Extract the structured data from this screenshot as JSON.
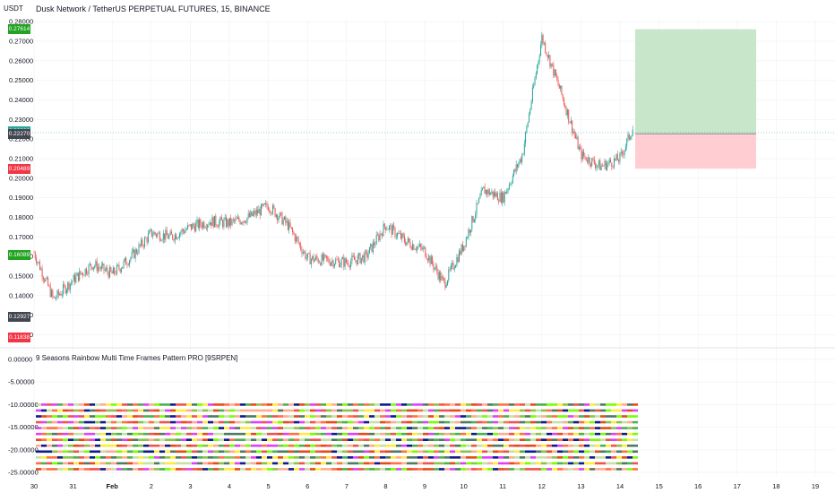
{
  "title": "Dusk Network / TetherUS PERPETUAL FUTURES, 15, BINANCE",
  "currency": "USDT",
  "indicator_title": "9 Seasons Rainbow Multi Time Frames Pattern PRO [9SRPEN]",
  "colors": {
    "up": "#26a69a",
    "down": "#ef5350",
    "grid": "#eef0f3",
    "tp": "#c8e6c9",
    "sl": "#ffcdd2"
  },
  "chart_data": [
    {
      "type": "line",
      "name": "price",
      "y_ticks": [
        "0.28000",
        "0.27000",
        "0.26000",
        "0.25000",
        "0.24000",
        "0.23000",
        "0.22000",
        "0.21000",
        "0.20000",
        "0.19000",
        "0.18000",
        "0.17000",
        "0.16000",
        "0.15000",
        "0.14000",
        "0.13000",
        "0.12000"
      ],
      "ylim": [
        0.117,
        0.281
      ],
      "x_labels": [
        "30",
        "31",
        "Feb",
        "2",
        "3",
        "4",
        "5",
        "6",
        "7",
        "8",
        "9",
        "10",
        "11",
        "12",
        "13",
        "14",
        "15",
        "16",
        "17",
        "18",
        "19"
      ],
      "series": [
        {
          "x": [
            "30 00:00",
            "30 12:00",
            "31 00:00",
            "31 12:00",
            "Feb 00:00",
            "Feb 12:00",
            "2 00:00",
            "2 12:00",
            "3 00:00",
            "3 12:00",
            "4 00:00",
            "4 12:00",
            "5 00:00",
            "5 12:00",
            "6 00:00",
            "6 12:00",
            "7 00:00",
            "7 12:00",
            "8 00:00",
            "8 12:00",
            "9 00:00",
            "9 12:00",
            "10 00:00",
            "10 12:00",
            "11 00:00",
            "11 12:00",
            "12 00:00",
            "12 12:00",
            "13 00:00",
            "13 12:00",
            "14 00:00",
            "14 08:00"
          ],
          "y": [
            0.162,
            0.138,
            0.148,
            0.156,
            0.151,
            0.16,
            0.172,
            0.17,
            0.175,
            0.178,
            0.177,
            0.18,
            0.186,
            0.176,
            0.159,
            0.158,
            0.157,
            0.16,
            0.176,
            0.168,
            0.163,
            0.146,
            0.166,
            0.194,
            0.19,
            0.212,
            0.272,
            0.243,
            0.212,
            0.206,
            0.21,
            0.226
          ]
        }
      ],
      "price_badges": [
        {
          "label": "0.27614",
          "value": 0.27614,
          "color": "#22a322"
        },
        {
          "label": "0.22380",
          "value": 0.2238,
          "color": "#26a69a"
        },
        {
          "label": "03:05",
          "value": 0.2225,
          "color": "#26a69a"
        },
        {
          "label": "0.22270",
          "value": 0.2227,
          "color": "#434651"
        },
        {
          "label": "0.20489",
          "value": 0.20489,
          "color": "#f23645"
        },
        {
          "label": "0.16089",
          "value": 0.16089,
          "color": "#22a322"
        },
        {
          "label": "0.12927",
          "value": 0.12927,
          "color": "#434651"
        },
        {
          "label": "0.11838",
          "value": 0.11838,
          "color": "#f23645"
        }
      ],
      "position": {
        "target": 0.27614,
        "entry": 0.2227,
        "stop": 0.20489
      }
    },
    {
      "type": "heatmap",
      "name": "9 Seasons Rainbow Multi Time Frames Pattern PRO [9SRPEN]",
      "y_ticks": [
        "0.00000",
        "-5.00000",
        "-10.00000",
        "-15.00000",
        "-20.00000",
        "-25.00000"
      ],
      "ylim": [
        -26,
        1
      ],
      "rows": 12,
      "palette": [
        "#ef5350",
        "#e64a19",
        "#ff7043",
        "#ffeb3b",
        "#76ff03",
        "#8bc34a",
        "#c5e1a5",
        "#4caf50",
        "#4e7a63",
        "#ffab91",
        "#0d1b8c",
        "#e040fb"
      ]
    }
  ]
}
